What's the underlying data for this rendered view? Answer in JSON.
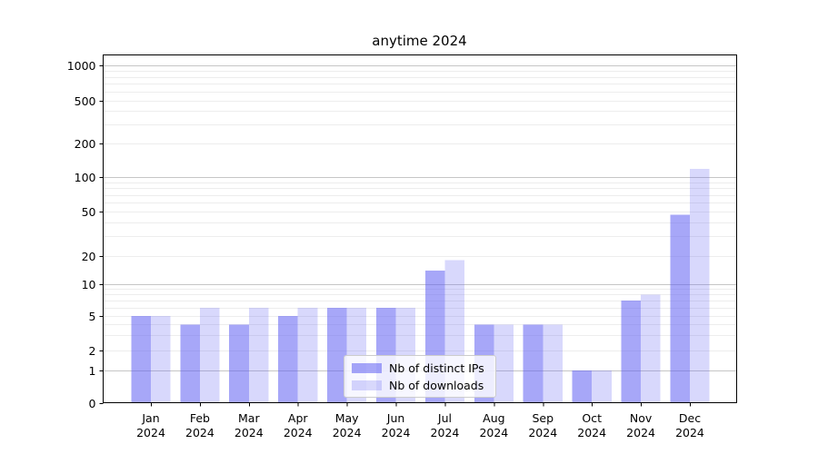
{
  "chart_data": {
    "type": "bar",
    "title": "anytime 2024",
    "categories": [
      "Jan",
      "Feb",
      "Mar",
      "Apr",
      "May",
      "Jun",
      "Jul",
      "Aug",
      "Sep",
      "Oct",
      "Nov",
      "Dec"
    ],
    "category_year": "2024",
    "series": [
      {
        "name": "Nb of distinct IPs",
        "color": "rgba(95,95,243,0.55)",
        "values": [
          5,
          4,
          4,
          5,
          6,
          6,
          14,
          4,
          4,
          1,
          7,
          47
        ]
      },
      {
        "name": "Nb of downloads",
        "color": "rgba(95,95,243,0.245)",
        "values": [
          5,
          6,
          6,
          6,
          6,
          6,
          18,
          4,
          4,
          1,
          8,
          118
        ]
      }
    ],
    "yticks": [
      0,
      1,
      2,
      5,
      10,
      20,
      50,
      100,
      200,
      500,
      1000
    ],
    "ylim": [
      0,
      1000
    ],
    "scale": "quasi-log",
    "xlabel": "",
    "ylabel": "",
    "grid": {
      "major_lines": [
        1,
        10,
        100,
        1000
      ],
      "minor_multiples": [
        2,
        3,
        4,
        5,
        6,
        7,
        8,
        9
      ],
      "minor_decades": [
        1,
        10,
        100
      ],
      "major_color": "#c6c6c6",
      "minor_color": "#ededed"
    },
    "legend": {
      "position": "lower center"
    },
    "axis_color": "#000000"
  }
}
